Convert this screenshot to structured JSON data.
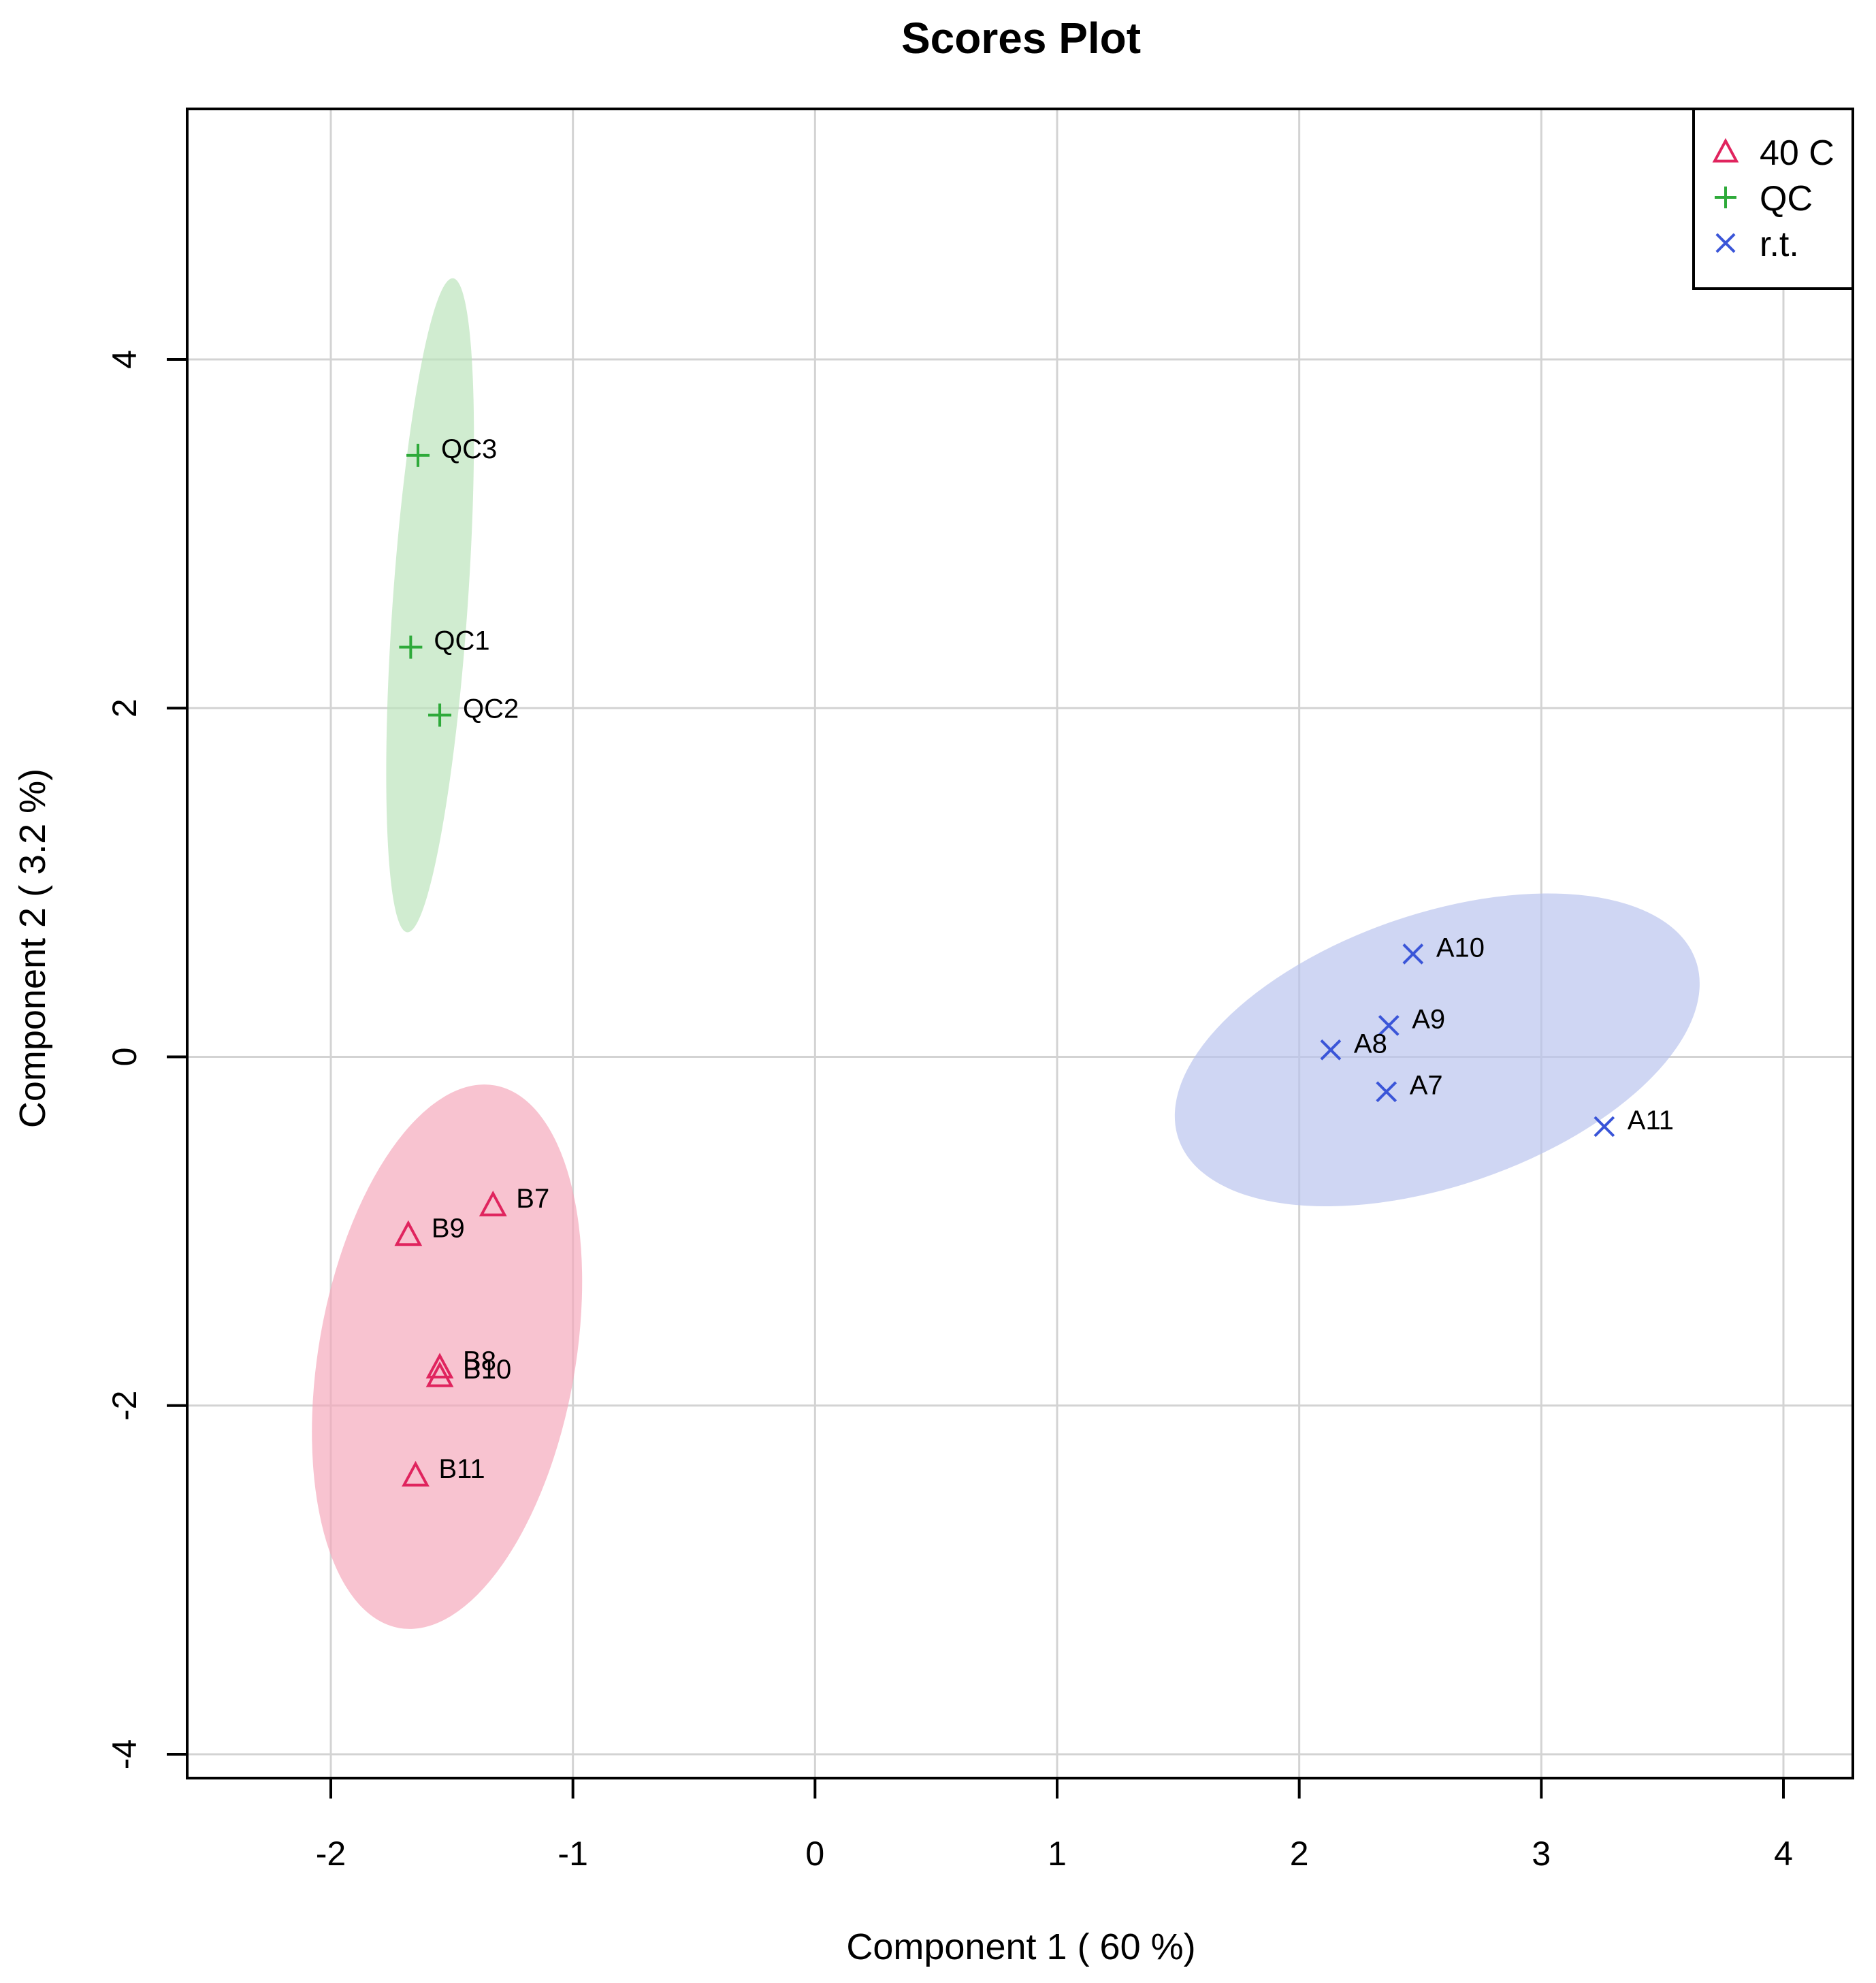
{
  "chart_data": {
    "type": "scatter",
    "title": "Scores Plot",
    "xlabel": "Component 1 ( 60 %)",
    "ylabel": "Component 2 ( 3.2 %)",
    "xlim": [
      -2.6,
      4.3
    ],
    "ylim": [
      -4.1,
      5.4
    ],
    "xticks": [
      -2,
      -1,
      0,
      1,
      2,
      3,
      4
    ],
    "yticks": [
      -4,
      -2,
      0,
      2,
      4
    ],
    "grid": true,
    "legend_position": "top-right",
    "series": [
      {
        "name": "40 C",
        "marker": "triangle",
        "color": "#e0245e",
        "ellipse_color": "#f4a7b9",
        "points": [
          {
            "label": "B7",
            "x": -1.33,
            "y": -0.85
          },
          {
            "label": "B9",
            "x": -1.68,
            "y": -1.02
          },
          {
            "label": "B8",
            "x": -1.55,
            "y": -1.78
          },
          {
            "label": "B10",
            "x": -1.55,
            "y": -1.83
          },
          {
            "label": "B11",
            "x": -1.65,
            "y": -2.4
          }
        ],
        "ellipse": {
          "cx": -1.52,
          "cy": -1.72,
          "rx": 0.53,
          "ry": 1.58,
          "angle_deg": 10
        }
      },
      {
        "name": "QC",
        "marker": "plus",
        "color": "#2eaa3a",
        "ellipse_color": "#b9e3b9",
        "points": [
          {
            "label": "QC3",
            "x": -1.64,
            "y": 3.45
          },
          {
            "label": "QC1",
            "x": -1.67,
            "y": 2.35
          },
          {
            "label": "QC2",
            "x": -1.55,
            "y": 1.96
          }
        ],
        "ellipse": {
          "cx": -1.59,
          "cy": 2.59,
          "rx": 0.155,
          "ry": 1.88,
          "angle_deg": 4
        }
      },
      {
        "name": "r.t.",
        "marker": "cross",
        "color": "#3a55d8",
        "ellipse_color": "#b8c2ee",
        "points": [
          {
            "label": "A10",
            "x": 2.47,
            "y": 0.59
          },
          {
            "label": "A9",
            "x": 2.37,
            "y": 0.18
          },
          {
            "label": "A8",
            "x": 2.13,
            "y": 0.04
          },
          {
            "label": "A7",
            "x": 2.36,
            "y": -0.2
          },
          {
            "label": "A11",
            "x": 3.26,
            "y": -0.4
          }
        ],
        "ellipse": {
          "cx": 2.57,
          "cy": 0.04,
          "rx": 1.13,
          "ry": 0.78,
          "angle_deg": -19
        }
      }
    ]
  }
}
